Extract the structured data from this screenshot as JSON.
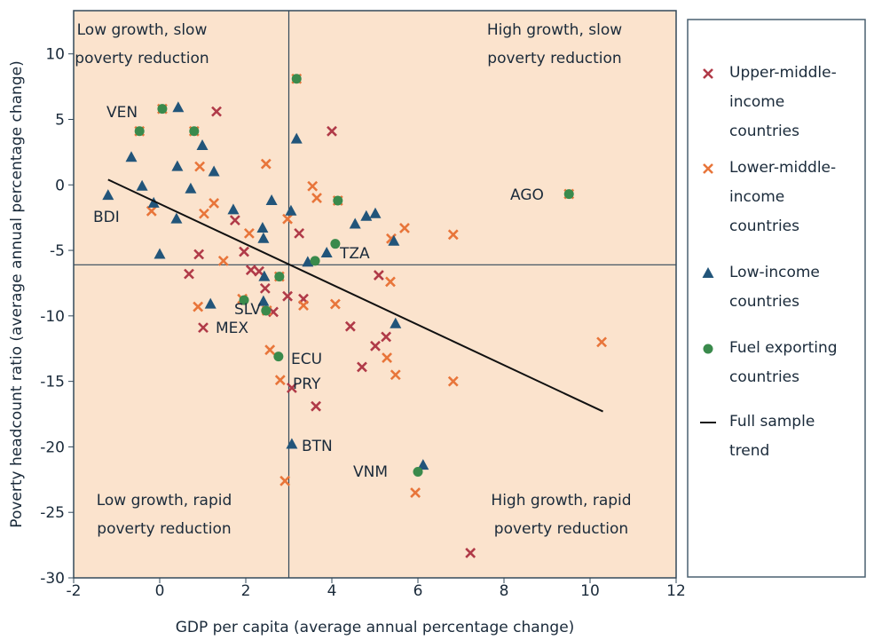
{
  "chart_data": {
    "type": "scatter",
    "x_label": "GDP per capita (average annual percentage change)",
    "y_label": "Poverty headcount ratio (average annual percentage change)",
    "xlim": [
      -2,
      12
    ],
    "ylim": [
      -30,
      13.3
    ],
    "xticks": [
      -2,
      0,
      2,
      4,
      6,
      8,
      10,
      12
    ],
    "yticks": [
      -30,
      -25,
      -20,
      -15,
      -10,
      -5,
      0,
      5,
      10
    ],
    "reference_lines": {
      "x": 3,
      "y": -6.1
    },
    "quadrant_labels": [
      "Low growth, slow poverty reduction",
      "High growth, slow poverty reduction",
      "Low growth, rapid poverty reduction",
      "High growth, rapid poverty reduction"
    ],
    "annotations": [
      "VEN",
      "BDI",
      "SLV",
      "MEX",
      "ECU",
      "PRY",
      "BTN",
      "VNM",
      "TZA",
      "AGO"
    ],
    "series": [
      {
        "name": "Upper-middle-income countries",
        "color": "#b03a48",
        "marker": "x",
        "x": [
          1.32,
          4.0,
          0.68,
          0.91,
          1.75,
          1.96,
          2.12,
          2.31,
          2.45,
          2.64,
          2.97,
          3.24,
          3.34,
          3.07,
          3.63,
          4.43,
          4.7,
          5.09,
          5.01,
          5.26,
          1.01,
          7.22
        ],
        "values": [
          5.6,
          4.1,
          -6.8,
          -5.3,
          -2.7,
          -5.1,
          -6.5,
          -6.6,
          -7.9,
          -9.7,
          -8.5,
          -3.7,
          -8.7,
          -15.5,
          -16.9,
          -10.8,
          -13.9,
          -6.9,
          -12.3,
          -11.6,
          -10.9,
          -28.1
        ]
      },
      {
        "name": "Lower-middle-income countries",
        "color": "#e8753a",
        "marker": "x",
        "x": [
          -0.47,
          0.06,
          0.8,
          0.93,
          3.18,
          2.47,
          -0.19,
          1.03,
          1.26,
          2.08,
          1.48,
          0.89,
          1.92,
          2.49,
          2.78,
          2.97,
          3.55,
          3.65,
          4.14,
          3.34,
          4.08,
          2.56,
          2.8,
          2.91,
          5.38,
          5.69,
          5.36,
          5.28,
          5.48,
          6.82,
          6.82,
          5.94,
          9.51,
          10.27
        ],
        "values": [
          4.1,
          5.8,
          4.1,
          1.4,
          8.1,
          1.6,
          -2.0,
          -2.2,
          -1.4,
          -3.7,
          -5.8,
          -9.3,
          -8.7,
          -9.6,
          -7.0,
          -2.6,
          -0.1,
          -1.0,
          -1.2,
          -9.2,
          -9.1,
          -12.6,
          -14.9,
          -22.6,
          -4.1,
          -3.3,
          -7.4,
          -13.2,
          -14.5,
          -3.8,
          -15.0,
          -23.5,
          -0.7,
          -12.0
        ]
      },
      {
        "name": "Low-income countries",
        "color": "#22557a",
        "marker": "triangle",
        "x": [
          -1.2,
          -0.66,
          -0.41,
          -0.14,
          0,
          0.43,
          0.41,
          0.39,
          0.72,
          0.99,
          1.26,
          1.18,
          1.71,
          2.39,
          2.41,
          2.43,
          2.41,
          2.6,
          3.18,
          3.05,
          3.07,
          3.44,
          3.88,
          4.54,
          4.8,
          5.01,
          5.44,
          5.48,
          6.12
        ],
        "values": [
          -0.8,
          2.1,
          -0.1,
          -1.4,
          -5.3,
          5.9,
          1.4,
          -2.6,
          -0.3,
          3.0,
          1.0,
          -9.1,
          -1.9,
          -3.3,
          -4.1,
          -7.0,
          -8.9,
          -1.2,
          3.5,
          -2.0,
          -19.8,
          -5.9,
          -5.2,
          -3.0,
          -2.4,
          -2.2,
          -4.3,
          -10.6,
          -21.4
        ]
      },
      {
        "name": "Fuel exporting countries",
        "color": "#3a8a4c",
        "marker": "circle",
        "x": [
          -0.47,
          0.06,
          0.8,
          3.18,
          1.96,
          2.47,
          2.78,
          2.76,
          3.61,
          4.08,
          4.14,
          6.0,
          9.51
        ],
        "values": [
          4.1,
          5.8,
          4.1,
          8.1,
          -8.8,
          -9.6,
          -7.0,
          -13.1,
          -5.8,
          -4.5,
          -1.2,
          -21.9,
          -0.7
        ]
      },
      {
        "name": "Full sample trend",
        "color": "#111111",
        "marker": "line",
        "x": [
          -1.2,
          10.3
        ],
        "values": [
          0.4,
          -17.3
        ]
      }
    ]
  }
}
